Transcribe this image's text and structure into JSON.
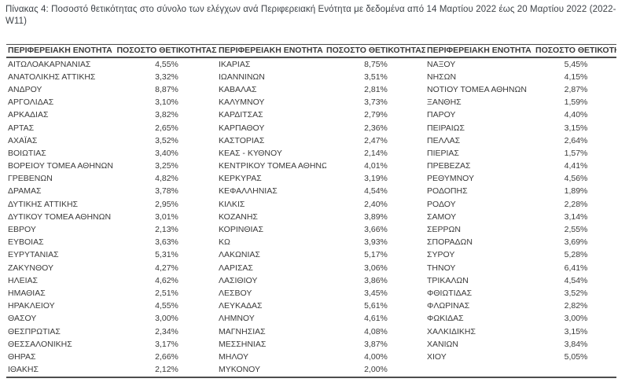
{
  "page": {
    "caption": "Πίνακας 4: Ποσοστό θετικότητας στο σύνολο των ελέγχων ανά Περιφερειακή Ενότητα με δεδομένα από 14 Μαρτίου 2022 έως 20 Μαρτίου 2022 (2022-W11)"
  },
  "table": {
    "header": {
      "region_label": "ΠΕΡΙΦΕΡΕΙΑΚΗ ΕΝΟΤΗΤΑ",
      "positivity_label": "ΠΟΣΟΣΤΟ ΘΕΤΙΚΟΤΗΤΑΣ"
    },
    "groups": [
      {
        "rows": [
          {
            "region": "ΑΙΤΩΛΟΑΚΑΡΝΑΝΙΑΣ",
            "value": "4,55%"
          },
          {
            "region": "ΑΝΑΤΟΛΙΚΗΣ ΑΤΤΙΚΗΣ",
            "value": "3,32%"
          },
          {
            "region": "ΑΝΔΡΟΥ",
            "value": "8,87%"
          },
          {
            "region": "ΑΡΓΟΛΙΔΑΣ",
            "value": "3,10%"
          },
          {
            "region": "ΑΡΚΑΔΙΑΣ",
            "value": "3,82%"
          },
          {
            "region": "ΑΡΤΑΣ",
            "value": "2,65%"
          },
          {
            "region": "ΑΧΑΪΑΣ",
            "value": "3,52%"
          },
          {
            "region": "ΒΟΙΩΤΙΑΣ",
            "value": "3,40%"
          },
          {
            "region": "ΒΟΡΕΙΟΥ ΤΟΜΕΑ ΑΘΗΝΩΝ",
            "value": "3,25%"
          },
          {
            "region": "ΓΡΕΒΕΝΩΝ",
            "value": "4,82%"
          },
          {
            "region": "ΔΡΑΜΑΣ",
            "value": "3,78%"
          },
          {
            "region": "ΔΥΤΙΚΗΣ ΑΤΤΙΚΗΣ",
            "value": "2,95%"
          },
          {
            "region": "ΔΥΤΙΚΟΥ ΤΟΜΕΑ ΑΘΗΝΩΝ",
            "value": "3,01%"
          },
          {
            "region": "ΕΒΡΟΥ",
            "value": "2,13%"
          },
          {
            "region": "ΕΥΒΟΙΑΣ",
            "value": "3,63%"
          },
          {
            "region": "ΕΥΡΥΤΑΝΙΑΣ",
            "value": "5,31%"
          },
          {
            "region": "ΖΑΚΥΝΘΟΥ",
            "value": "4,27%"
          },
          {
            "region": "ΗΛΕΙΑΣ",
            "value": "4,62%"
          },
          {
            "region": "ΗΜΑΘΙΑΣ",
            "value": "2,51%"
          },
          {
            "region": "ΗΡΑΚΛΕΙΟΥ",
            "value": "4,55%"
          },
          {
            "region": "ΘΑΣΟΥ",
            "value": "3,00%"
          },
          {
            "region": "ΘΕΣΠΡΩΤΙΑΣ",
            "value": "2,34%"
          },
          {
            "region": "ΘΕΣΣΑΛΟΝΙΚΗΣ",
            "value": "3,17%"
          },
          {
            "region": "ΘΗΡΑΣ",
            "value": "2,66%"
          },
          {
            "region": "ΙΘΑΚΗΣ",
            "value": "2,12%"
          }
        ]
      },
      {
        "rows": [
          {
            "region": "ΙΚΑΡΙΑΣ",
            "value": "8,75%"
          },
          {
            "region": "ΙΩΑΝΝΙΝΩΝ",
            "value": "3,51%"
          },
          {
            "region": "ΚΑΒΑΛΑΣ",
            "value": "2,81%"
          },
          {
            "region": "ΚΑΛΥΜΝΟΥ",
            "value": "3,73%"
          },
          {
            "region": "ΚΑΡΔΙΤΣΑΣ",
            "value": "2,79%"
          },
          {
            "region": "ΚΑΡΠΑΘΟΥ",
            "value": "2,36%"
          },
          {
            "region": "ΚΑΣΤΟΡΙΑΣ",
            "value": "2,47%"
          },
          {
            "region": "ΚΕΑΣ - ΚΥΘΝΟΥ",
            "value": "2,14%"
          },
          {
            "region": "ΚΕΝΤΡΙΚΟΥ ΤΟΜΕΑ ΑΘΗΝΩΝ",
            "value": "4,01%"
          },
          {
            "region": "ΚΕΡΚΥΡΑΣ",
            "value": "3,19%"
          },
          {
            "region": "ΚΕΦΑΛΛΗΝΙΑΣ",
            "value": "4,54%"
          },
          {
            "region": "ΚΙΛΚΙΣ",
            "value": "2,40%"
          },
          {
            "region": "ΚΟΖΑΝΗΣ",
            "value": "3,89%"
          },
          {
            "region": "ΚΟΡΙΝΘΙΑΣ",
            "value": "3,66%"
          },
          {
            "region": "ΚΩ",
            "value": "3,93%"
          },
          {
            "region": "ΛΑΚΩΝΙΑΣ",
            "value": "5,17%"
          },
          {
            "region": "ΛΑΡΙΣΑΣ",
            "value": "3,06%"
          },
          {
            "region": "ΛΑΣΙΘΙΟΥ",
            "value": "3,86%"
          },
          {
            "region": "ΛΕΣΒΟΥ",
            "value": "3,45%"
          },
          {
            "region": "ΛΕΥΚΑΔΑΣ",
            "value": "5,61%"
          },
          {
            "region": "ΛΗΜΝΟΥ",
            "value": "4,61%"
          },
          {
            "region": "ΜΑΓΝΗΣΙΑΣ",
            "value": "4,08%"
          },
          {
            "region": "ΜΕΣΣΗΝΙΑΣ",
            "value": "3,87%"
          },
          {
            "region": "ΜΗΛΟΥ",
            "value": "4,00%"
          },
          {
            "region": "ΜΥΚΟΝΟΥ",
            "value": "2,00%"
          }
        ]
      },
      {
        "rows": [
          {
            "region": "ΝΑΞΟΥ",
            "value": "5,45%"
          },
          {
            "region": "ΝΗΣΩΝ",
            "value": "4,15%"
          },
          {
            "region": "ΝΟΤΙΟΥ ΤΟΜΕΑ ΑΘΗΝΩΝ",
            "value": "2,87%"
          },
          {
            "region": "ΞΑΝΘΗΣ",
            "value": "1,59%"
          },
          {
            "region": "ΠΑΡΟΥ",
            "value": "4,40%"
          },
          {
            "region": "ΠΕΙΡΑΙΩΣ",
            "value": "3,15%"
          },
          {
            "region": "ΠΕΛΛΑΣ",
            "value": "2,64%"
          },
          {
            "region": "ΠΙΕΡΙΑΣ",
            "value": "1,57%"
          },
          {
            "region": "ΠΡΕΒΕΖΑΣ",
            "value": "4,41%"
          },
          {
            "region": "ΡΕΘΥΜΝΟΥ",
            "value": "4,56%"
          },
          {
            "region": "ΡΟΔΟΠΗΣ",
            "value": "1,89%"
          },
          {
            "region": "ΡΟΔΟΥ",
            "value": "2,28%"
          },
          {
            "region": "ΣΑΜΟΥ",
            "value": "3,14%"
          },
          {
            "region": "ΣΕΡΡΩΝ",
            "value": "2,55%"
          },
          {
            "region": "ΣΠΟΡΑΔΩΝ",
            "value": "3,69%"
          },
          {
            "region": "ΣΥΡΟΥ",
            "value": "5,28%"
          },
          {
            "region": "ΤΗΝΟΥ",
            "value": "6,41%"
          },
          {
            "region": "ΤΡΙΚΑΛΩΝ",
            "value": "4,54%"
          },
          {
            "region": "ΦΘΙΩΤΙΔΑΣ",
            "value": "3,52%"
          },
          {
            "region": "ΦΛΩΡΙΝΑΣ",
            "value": "2,82%"
          },
          {
            "region": "ΦΩΚΙΔΑΣ",
            "value": "3,00%"
          },
          {
            "region": "ΧΑΛΚΙΔΙΚΗΣ",
            "value": "3,15%"
          },
          {
            "region": "ΧΑΝΙΩΝ",
            "value": "3,84%"
          },
          {
            "region": "ΧΙΟΥ",
            "value": "5,05%"
          }
        ]
      }
    ]
  },
  "colors": {
    "background": "#ffffff",
    "text": "#3a3a3a",
    "title_text": "#3d4247",
    "border": "#4d4d4d"
  }
}
